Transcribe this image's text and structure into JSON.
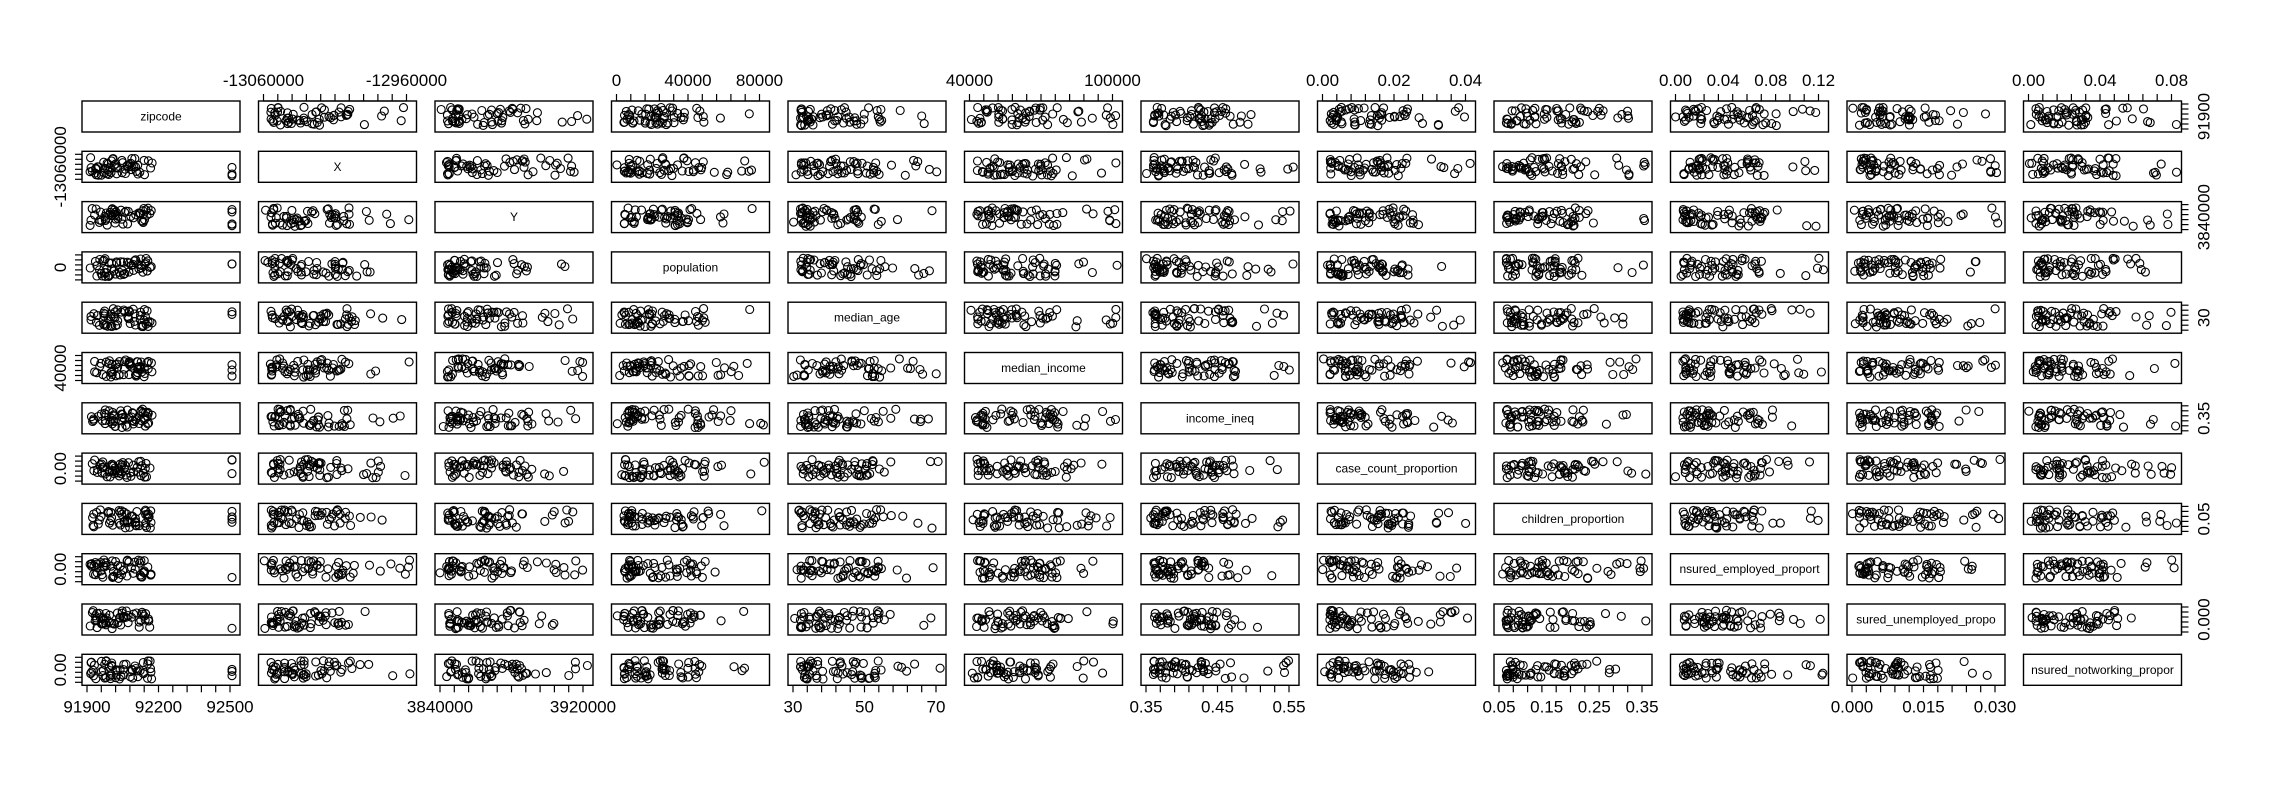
{
  "chart_data": {
    "type": "scatter",
    "variables": [
      "zipcode",
      "X",
      "Y",
      "population",
      "median_age",
      "median_income",
      "income_ineq",
      "case_count_proportion",
      "children_proportion",
      "nsured_employed_proport",
      "sured_unemployed_propo",
      "nsured_notworking_propor"
    ],
    "top_axis": [
      {
        "var": 1,
        "ticks": [
          "-13060000",
          "-12960000"
        ]
      },
      {
        "var": 3,
        "ticks": [
          "0",
          "40000",
          "80000"
        ]
      },
      {
        "var": 5,
        "ticks": [
          "40000",
          "100000"
        ]
      },
      {
        "var": 7,
        "ticks": [
          "0.00",
          "0.02",
          "0.04"
        ]
      },
      {
        "var": 9,
        "ticks": [
          "0.00",
          "0.04",
          "0.08",
          "0.12"
        ]
      },
      {
        "var": 11,
        "ticks": [
          "0.00",
          "0.04",
          "0.08"
        ]
      }
    ],
    "bottom_axis": [
      {
        "var": 0,
        "ticks": [
          "91900",
          "92200",
          "92500"
        ]
      },
      {
        "var": 2,
        "ticks": [
          "3840000",
          "3920000"
        ]
      },
      {
        "var": 4,
        "ticks": [
          "30",
          "50",
          "70"
        ]
      },
      {
        "var": 6,
        "ticks": [
          "0.35",
          "0.45",
          "0.55"
        ]
      },
      {
        "var": 8,
        "ticks": [
          "0.05",
          "0.15",
          "0.25",
          "0.35"
        ]
      },
      {
        "var": 10,
        "ticks": [
          "0.000",
          "0.015",
          "0.030"
        ]
      }
    ],
    "left_axis": [
      {
        "var": 1,
        "ticks": [
          "-13060000"
        ]
      },
      {
        "var": 3,
        "ticks": [
          "0"
        ]
      },
      {
        "var": 5,
        "ticks": [
          "40000"
        ]
      },
      {
        "var": 7,
        "ticks": [
          "0.00"
        ]
      },
      {
        "var": 9,
        "ticks": [
          "0.00"
        ]
      },
      {
        "var": 11,
        "ticks": [
          "0.00"
        ]
      }
    ],
    "right_axis": [
      {
        "var": 0,
        "ticks": [
          "91900"
        ]
      },
      {
        "var": 2,
        "ticks": [
          "3840000"
        ]
      },
      {
        "var": 4,
        "ticks": [
          "30"
        ]
      },
      {
        "var": 6,
        "ticks": [
          "0.35"
        ]
      },
      {
        "var": 8,
        "ticks": [
          "0.05"
        ]
      },
      {
        "var": 10,
        "ticks": [
          "0.000"
        ]
      }
    ]
  }
}
